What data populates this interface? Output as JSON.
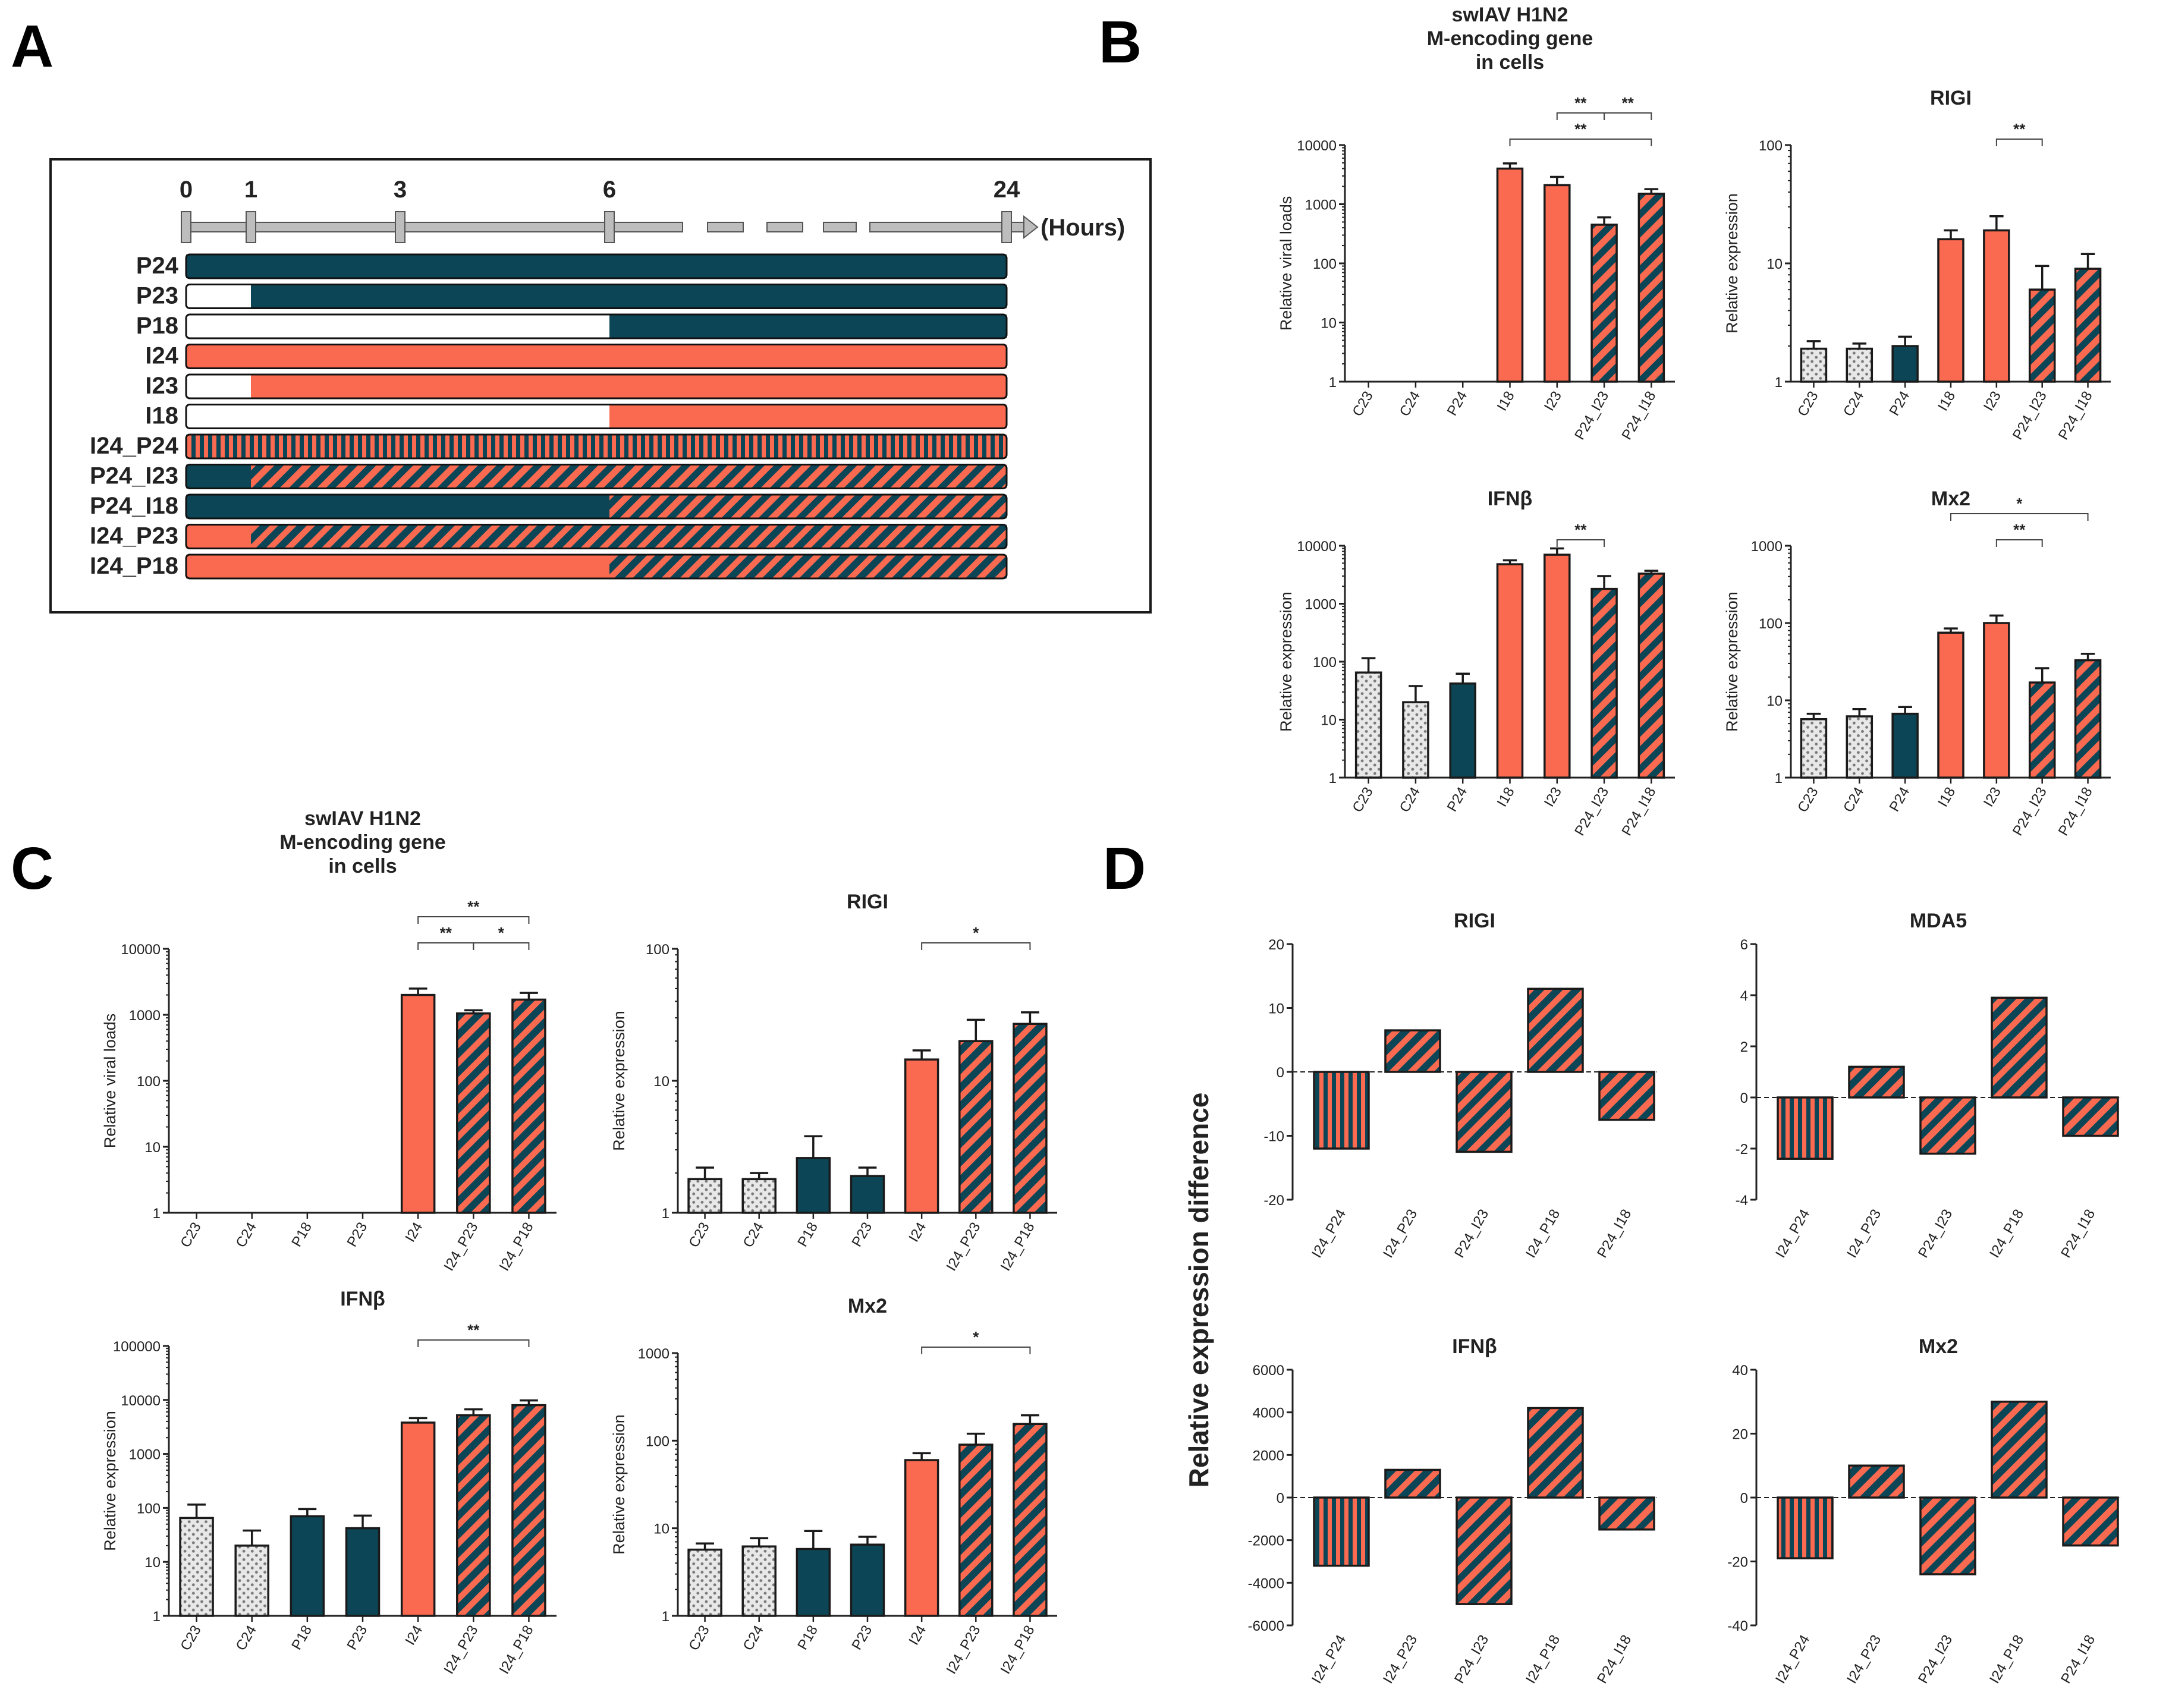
{
  "colors": {
    "salmon": "#fa6a50",
    "teal": "#0c4656",
    "white": "#ffffff",
    "grey": "#bdbdbd",
    "frame": "#1a1a1a"
  },
  "panel_labels": {
    "a": "A",
    "b": "B",
    "c": "C",
    "d": "D"
  },
  "timeline": {
    "ticks": [
      "0",
      "1",
      "3",
      "6",
      "24"
    ],
    "tick_hours": [
      0,
      1,
      3,
      6,
      24
    ],
    "unit_label": "(Hours)",
    "rows": [
      {
        "label": "P24",
        "segments": [
          {
            "from": 0,
            "to": 24,
            "fill": "teal"
          }
        ]
      },
      {
        "label": "P23",
        "segments": [
          {
            "from": 0,
            "to": 1,
            "fill": "white"
          },
          {
            "from": 1,
            "to": 24,
            "fill": "teal"
          }
        ]
      },
      {
        "label": "P18",
        "segments": [
          {
            "from": 0,
            "to": 6,
            "fill": "white"
          },
          {
            "from": 6,
            "to": 24,
            "fill": "teal"
          }
        ]
      },
      {
        "label": "I24",
        "segments": [
          {
            "from": 0,
            "to": 24,
            "fill": "salmon"
          }
        ]
      },
      {
        "label": "I23",
        "segments": [
          {
            "from": 0,
            "to": 1,
            "fill": "white"
          },
          {
            "from": 1,
            "to": 24,
            "fill": "salmon"
          }
        ]
      },
      {
        "label": "I18",
        "segments": [
          {
            "from": 0,
            "to": 6,
            "fill": "white"
          },
          {
            "from": 6,
            "to": 24,
            "fill": "salmon"
          }
        ]
      },
      {
        "label": "I24_P24",
        "segments": [
          {
            "from": 0,
            "to": 24,
            "fill": "vert"
          }
        ]
      },
      {
        "label": "P24_I23",
        "segments": [
          {
            "from": 0,
            "to": 1,
            "fill": "teal"
          },
          {
            "from": 1,
            "to": 24,
            "fill": "diag-s"
          }
        ]
      },
      {
        "label": "P24_I18",
        "segments": [
          {
            "from": 0,
            "to": 6,
            "fill": "teal"
          },
          {
            "from": 6,
            "to": 24,
            "fill": "diag-s"
          }
        ]
      },
      {
        "label": "I24_P23",
        "segments": [
          {
            "from": 0,
            "to": 1,
            "fill": "salmon"
          },
          {
            "from": 1,
            "to": 24,
            "fill": "diag-t"
          }
        ]
      },
      {
        "label": "I24_P18",
        "segments": [
          {
            "from": 0,
            "to": 6,
            "fill": "salmon"
          },
          {
            "from": 6,
            "to": 24,
            "fill": "diag-t"
          }
        ]
      }
    ]
  },
  "chart_data": [
    {
      "id": "B1",
      "type": "bar",
      "title": [
        "swIAV H1N2",
        "M-encoding gene",
        "in cells"
      ],
      "ylabel": "Relative viral loads",
      "yscale": "log",
      "ylim": [
        1,
        10000
      ],
      "yticks": [
        "1",
        "10",
        "100",
        "1000",
        "10000"
      ],
      "categories": [
        "C23",
        "C24",
        "P24",
        "I18",
        "I23",
        "P24_I23",
        "P24_I18"
      ],
      "values": [
        null,
        null,
        null,
        4000,
        2100,
        450,
        1500
      ],
      "errors": [
        0,
        0,
        0,
        900,
        800,
        150,
        300
      ],
      "fills": [
        "dots",
        "dots",
        "teal",
        "salmon",
        "salmon",
        "diag-s",
        "diag-s"
      ],
      "significance": [
        {
          "from": 3,
          "to": 6,
          "label": "**",
          "level": 0
        },
        {
          "from": 4,
          "to": 5,
          "label": "**",
          "level": 1
        },
        {
          "from": 5,
          "to": 6,
          "label": "**",
          "level": 1
        }
      ]
    },
    {
      "id": "B2",
      "type": "bar",
      "title": [
        "RIGI"
      ],
      "ylabel": "Relative expression",
      "yscale": "log",
      "ylim": [
        1,
        100
      ],
      "yticks": [
        "1",
        "10",
        "100"
      ],
      "categories": [
        "C23",
        "C24",
        "P24",
        "I18",
        "I23",
        "P24_I23",
        "P24_I18"
      ],
      "values": [
        1.9,
        1.9,
        2.0,
        16,
        19,
        6,
        9
      ],
      "errors": [
        0.3,
        0.2,
        0.4,
        3,
        6,
        3.5,
        3
      ],
      "fills": [
        "dots",
        "dots",
        "teal",
        "salmon",
        "salmon",
        "diag-s",
        "diag-s"
      ],
      "significance": [
        {
          "from": 4,
          "to": 5,
          "label": "**",
          "level": 0
        }
      ]
    },
    {
      "id": "B3",
      "type": "bar",
      "title": [
        "IFNβ"
      ],
      "ylabel": "Relative expression",
      "yscale": "log",
      "ylim": [
        1,
        10000
      ],
      "yticks": [
        "1",
        "10",
        "100",
        "1000",
        "10000"
      ],
      "categories": [
        "C23",
        "C24",
        "P24",
        "I18",
        "I23",
        "P24_I23",
        "P24_I18"
      ],
      "values": [
        65,
        20,
        42,
        4800,
        7000,
        1800,
        3300
      ],
      "errors": [
        50,
        18,
        20,
        800,
        2000,
        1200,
        400
      ],
      "fills": [
        "dots",
        "dots",
        "teal",
        "salmon",
        "salmon",
        "diag-s",
        "diag-s"
      ],
      "significance": [
        {
          "from": 4,
          "to": 5,
          "label": "**",
          "level": 0
        }
      ]
    },
    {
      "id": "B4",
      "type": "bar",
      "title": [
        "Mx2"
      ],
      "ylabel": "Relative expression",
      "yscale": "log",
      "ylim": [
        1,
        1000
      ],
      "yticks": [
        "1",
        "10",
        "100",
        "1000"
      ],
      "categories": [
        "C23",
        "C24",
        "P24",
        "I18",
        "I23",
        "P24_I23",
        "P24_I18"
      ],
      "values": [
        5.7,
        6.2,
        6.7,
        75,
        100,
        17,
        33
      ],
      "errors": [
        1,
        1.5,
        1.5,
        10,
        25,
        9,
        7
      ],
      "fills": [
        "dots",
        "dots",
        "teal",
        "salmon",
        "salmon",
        "diag-s",
        "diag-s"
      ],
      "significance": [
        {
          "from": 3,
          "to": 6,
          "label": "*",
          "level": 1
        },
        {
          "from": 4,
          "to": 5,
          "label": "**",
          "level": 0
        }
      ]
    },
    {
      "id": "C1",
      "type": "bar",
      "title": [
        "swIAV H1N2",
        "M-encoding gene",
        "in cells"
      ],
      "ylabel": "Relative viral loads",
      "yscale": "log",
      "ylim": [
        1,
        10000
      ],
      "yticks": [
        "1",
        "10",
        "100",
        "1000",
        "10000"
      ],
      "categories": [
        "C23",
        "C24",
        "P18",
        "P23",
        "I24",
        "I24_P23",
        "I24_P18"
      ],
      "values": [
        null,
        null,
        null,
        null,
        2000,
        1050,
        1700
      ],
      "errors": [
        0,
        0,
        0,
        0,
        500,
        120,
        450
      ],
      "fills": [
        "dots",
        "dots",
        "teal",
        "teal",
        "salmon",
        "diag-t",
        "diag-t"
      ],
      "significance": [
        {
          "from": 4,
          "to": 6,
          "label": "**",
          "level": 1
        },
        {
          "from": 4,
          "to": 5,
          "label": "**",
          "level": 0
        },
        {
          "from": 5,
          "to": 6,
          "label": "*",
          "level": 0
        }
      ]
    },
    {
      "id": "C2",
      "type": "bar",
      "title": [
        "RIGI"
      ],
      "ylabel": "Relative expression",
      "yscale": "log",
      "ylim": [
        1,
        100
      ],
      "yticks": [
        "1",
        "10",
        "100"
      ],
      "categories": [
        "C23",
        "C24",
        "P18",
        "P23",
        "I24",
        "I24_P23",
        "I24_P18"
      ],
      "values": [
        1.8,
        1.8,
        2.6,
        1.9,
        14.5,
        20,
        27
      ],
      "errors": [
        0.4,
        0.2,
        1.2,
        0.3,
        2.5,
        9,
        6
      ],
      "fills": [
        "dots",
        "dots",
        "teal",
        "teal",
        "salmon",
        "diag-t",
        "diag-t"
      ],
      "significance": [
        {
          "from": 4,
          "to": 6,
          "label": "*",
          "level": 0
        }
      ]
    },
    {
      "id": "C3",
      "type": "bar",
      "title": [
        "IFNβ"
      ],
      "ylabel": "Relative expression",
      "yscale": "log",
      "ylim": [
        1,
        100000
      ],
      "yticks": [
        "1",
        "10",
        "100",
        "1000",
        "10000",
        "100000"
      ],
      "categories": [
        "C23",
        "C24",
        "P18",
        "P23",
        "I24",
        "I24_P23",
        "I24_P18"
      ],
      "values": [
        65,
        20,
        70,
        42,
        3800,
        5200,
        8000
      ],
      "errors": [
        50,
        18,
        25,
        30,
        800,
        1500,
        1800
      ],
      "fills": [
        "dots",
        "dots",
        "teal",
        "teal",
        "salmon",
        "diag-t",
        "diag-t"
      ],
      "significance": [
        {
          "from": 4,
          "to": 6,
          "label": "**",
          "level": 0
        }
      ]
    },
    {
      "id": "C4",
      "type": "bar",
      "title": [
        "Mx2"
      ],
      "ylabel": "Relative expression",
      "yscale": "log",
      "ylim": [
        1,
        1000
      ],
      "yticks": [
        "1",
        "10",
        "100",
        "1000"
      ],
      "categories": [
        "C23",
        "C24",
        "P18",
        "P23",
        "I24",
        "I24_P23",
        "I24_P18"
      ],
      "values": [
        5.7,
        6.2,
        5.8,
        6.5,
        60,
        90,
        155
      ],
      "errors": [
        1,
        1.5,
        3.5,
        1.5,
        12,
        30,
        40
      ],
      "fills": [
        "dots",
        "dots",
        "teal",
        "teal",
        "salmon",
        "diag-t",
        "diag-t"
      ],
      "significance": [
        {
          "from": 4,
          "to": 6,
          "label": "*",
          "level": 0
        }
      ]
    },
    {
      "id": "D1",
      "type": "bar",
      "title": [
        "RIGI"
      ],
      "ylabel": "",
      "yscale": "linear",
      "ylim": [
        -20,
        20
      ],
      "yticks": [
        "-20",
        "-10",
        "0",
        "10",
        "20"
      ],
      "categories": [
        "I24_P24",
        "I24_P23",
        "P24_I23",
        "I24_P18",
        "P24_I18"
      ],
      "values": [
        -12,
        6.5,
        -12.5,
        13,
        -7.5
      ],
      "fills": [
        "vert",
        "diag-t",
        "diag-s",
        "diag-t",
        "diag-s"
      ]
    },
    {
      "id": "D2",
      "type": "bar",
      "title": [
        "MDA5"
      ],
      "ylabel": "",
      "yscale": "linear",
      "ylim": [
        -4,
        6
      ],
      "yticks": [
        "-4",
        "-2",
        "0",
        "2",
        "4",
        "6"
      ],
      "categories": [
        "I24_P24",
        "I24_P23",
        "P24_I23",
        "I24_P18",
        "P24_I18"
      ],
      "values": [
        -2.4,
        1.2,
        -2.2,
        3.9,
        -1.5
      ],
      "fills": [
        "vert",
        "diag-t",
        "diag-s",
        "diag-t",
        "diag-s"
      ]
    },
    {
      "id": "D3",
      "type": "bar",
      "title": [
        "IFNβ"
      ],
      "ylabel": "",
      "yscale": "linear",
      "ylim": [
        -6000,
        6000
      ],
      "yticks": [
        "-6000",
        "-4000",
        "-2000",
        "0",
        "2000",
        "4000",
        "6000"
      ],
      "categories": [
        "I24_P24",
        "I24_P23",
        "P24_I23",
        "I24_P18",
        "P24_I18"
      ],
      "values": [
        -3200,
        1300,
        -5000,
        4200,
        -1500
      ],
      "fills": [
        "vert",
        "diag-t",
        "diag-s",
        "diag-t",
        "diag-s"
      ]
    },
    {
      "id": "D4",
      "type": "bar",
      "title": [
        "Mx2"
      ],
      "ylabel": "",
      "yscale": "linear",
      "ylim": [
        -40,
        40
      ],
      "yticks": [
        "-40",
        "-20",
        "0",
        "20",
        "40"
      ],
      "categories": [
        "I24_P24",
        "I24_P23",
        "P24_I23",
        "I24_P18",
        "P24_I18"
      ],
      "values": [
        -19,
        10,
        -24,
        30,
        -15
      ],
      "fills": [
        "vert",
        "diag-t",
        "diag-s",
        "diag-t",
        "diag-s"
      ]
    }
  ],
  "panel_d_ylabel": "Relative expression difference"
}
